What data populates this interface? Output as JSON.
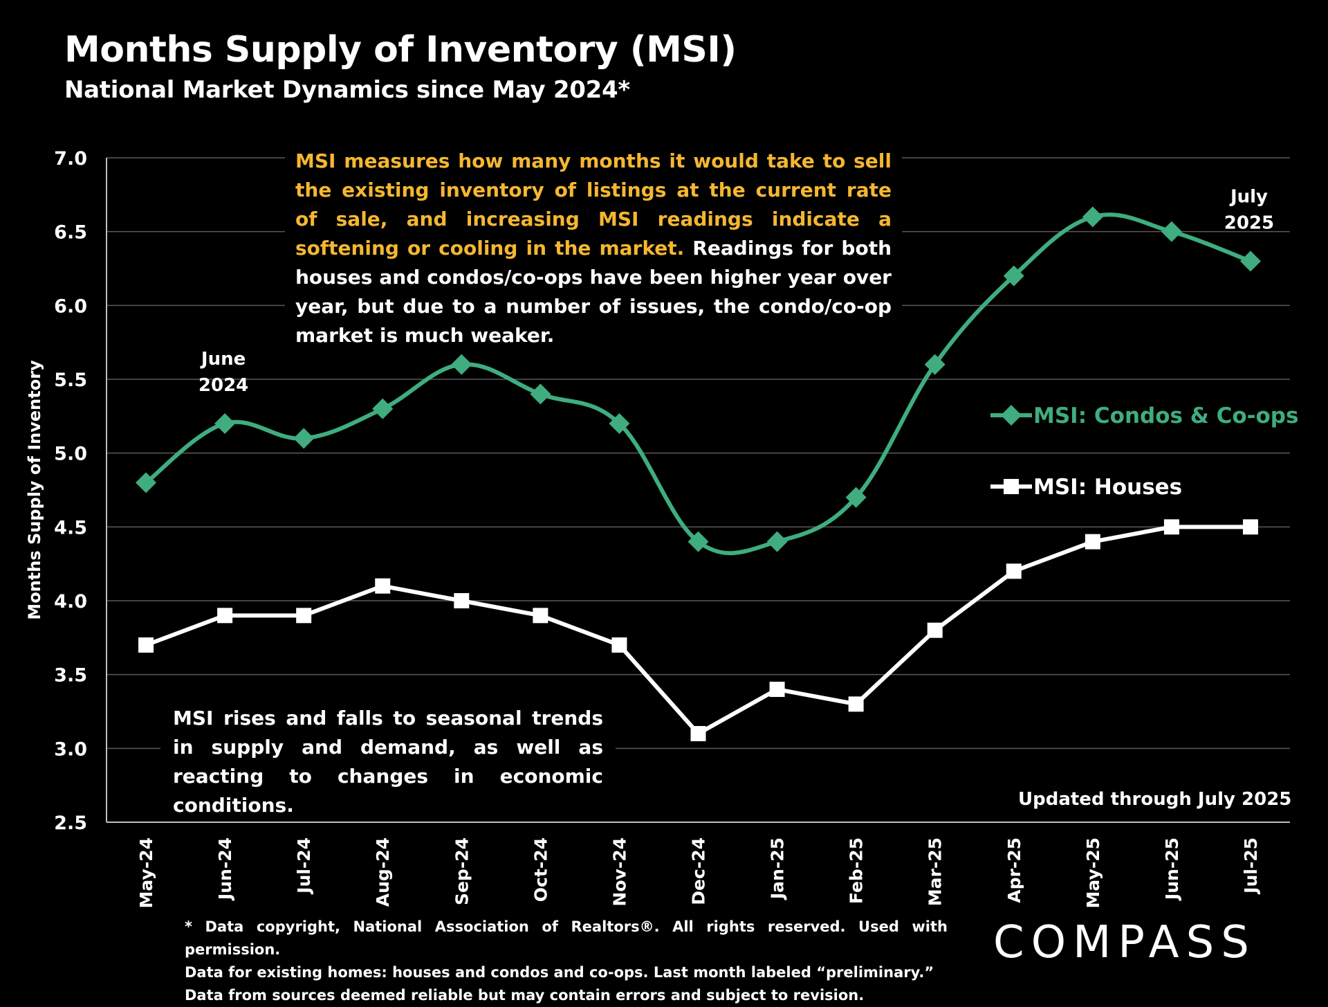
{
  "header": {
    "title": "Months Supply of Inventory (MSI)",
    "subtitle": "National Market Dynamics since May 2024*"
  },
  "notes": {
    "top_accent": "MSI measures how many months it would take to sell the existing inventory of listings at the current rate of sale, and increasing MSI readings indicate a softening or cooling in the market.",
    "top_rest": " Readings for both houses and condos/co-ops have been higher year over year, but due to a number of issues, the condo/co-op market is much weaker.",
    "bottom": "MSI rises and falls to seasonal trends in supply and demand, as well as reacting to changes in economic conditions.",
    "updated": "Updated through July 2025"
  },
  "footnote": {
    "line1": "* Data copyright, National Association of Realtors®. All rights reserved. Used with permission.",
    "line2": "Data for existing homes: houses and condos and co-ops. Last month labeled “preliminary.”",
    "line3": "Data from sources deemed reliable but may contain errors and subject to revision."
  },
  "logo": "COMPASS",
  "colors": {
    "condos": "#3fad7f",
    "houses": "#ffffff",
    "accent": "#f5b731",
    "grid": "#5a5a5a",
    "background": "#000000"
  },
  "chart_data": {
    "type": "line",
    "ylabel": "Months Supply of Inventory",
    "ylim": [
      2.5,
      7.0
    ],
    "yticks": [
      "2.5",
      "3.0",
      "3.5",
      "4.0",
      "4.5",
      "5.0",
      "5.5",
      "6.0",
      "6.5",
      "7.0"
    ],
    "grid": true,
    "categories": [
      "May-24",
      "Jun-24",
      "Jul-24",
      "Aug-24",
      "Sep-24",
      "Oct-24",
      "Nov-24",
      "Dec-24",
      "Jan-25",
      "Feb-25",
      "Mar-25",
      "Apr-25",
      "May-25",
      "Jun-25",
      "Jul-25"
    ],
    "series": [
      {
        "name": "MSI:  Condos & Co-ops",
        "marker": "diamond",
        "smooth": true,
        "color": "#3fad7f",
        "values": [
          4.8,
          5.2,
          5.1,
          5.3,
          5.6,
          5.4,
          5.2,
          4.4,
          4.4,
          4.7,
          5.6,
          6.2,
          6.6,
          6.5,
          6.3
        ]
      },
      {
        "name": "MSI:  Houses",
        "marker": "square",
        "smooth": false,
        "color": "#ffffff",
        "values": [
          3.7,
          3.9,
          3.9,
          4.1,
          4.0,
          3.9,
          3.7,
          3.1,
          3.4,
          3.3,
          3.8,
          4.2,
          4.4,
          4.5,
          4.5
        ]
      }
    ],
    "legend_position": "right",
    "annotations": [
      {
        "category": "Jun-24",
        "series": 0,
        "lines": [
          "June",
          "2024"
        ]
      },
      {
        "category": "Jul-25",
        "series": 0,
        "lines": [
          "July",
          "2025"
        ]
      }
    ]
  }
}
